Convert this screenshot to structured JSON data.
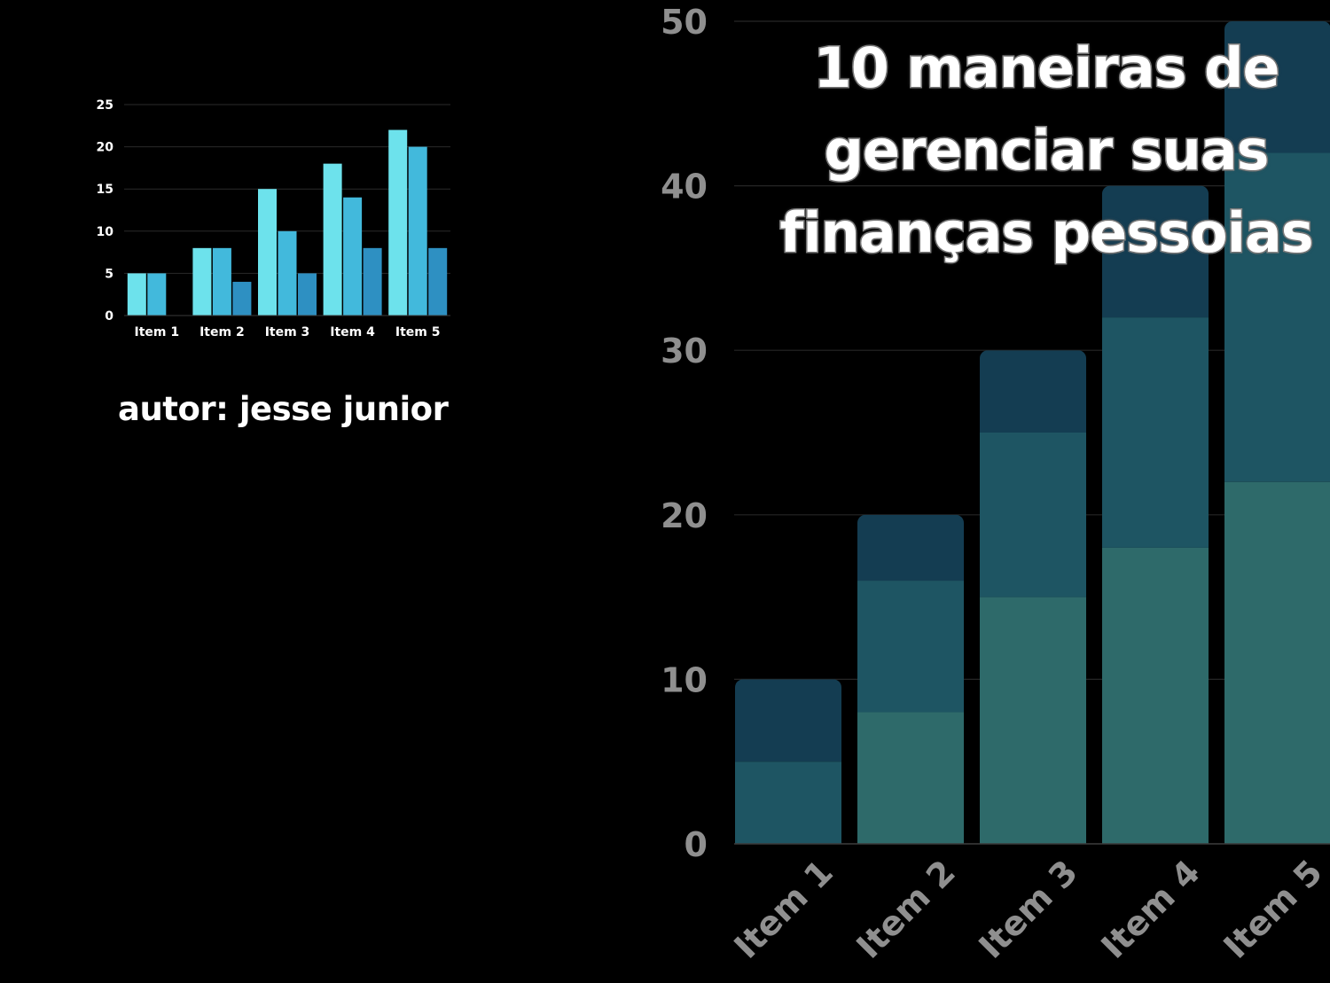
{
  "author_label": "autor: jesse junior",
  "title_lines": [
    "10 maneiras de",
    "gerenciar suas",
    "finanças pessoias"
  ],
  "chart_data": [
    {
      "type": "bar",
      "categories": [
        "Item 1",
        "Item 2",
        "Item 3",
        "Item 4",
        "Item 5"
      ],
      "series": [
        {
          "values": [
            5,
            8,
            15,
            18,
            22
          ],
          "color": "#6de2ec"
        },
        {
          "values": [
            5,
            8,
            10,
            14,
            20
          ],
          "color": "#42b9dc"
        },
        {
          "values": [
            0,
            4,
            5,
            8,
            8
          ],
          "color": "#2e90c2"
        }
      ],
      "yticks": [
        0,
        5,
        10,
        15,
        20,
        25
      ],
      "ylim": [
        0,
        25
      ],
      "grid": true
    },
    {
      "type": "bar",
      "stacked": true,
      "categories": [
        "Item 1",
        "Item 2",
        "Item 3",
        "Item 4",
        "Item 5"
      ],
      "series": [
        {
          "values": [
            0,
            8,
            15,
            18,
            22
          ],
          "color": "#2e6a6a"
        },
        {
          "values": [
            5,
            8,
            10,
            14,
            20
          ],
          "color": "#1e5563"
        },
        {
          "values": [
            5,
            4,
            5,
            8,
            8
          ],
          "color": "#143d52"
        }
      ],
      "yticks": [
        0,
        10,
        20,
        30,
        40,
        50
      ],
      "ylim": [
        0,
        50
      ],
      "grid": true
    }
  ]
}
